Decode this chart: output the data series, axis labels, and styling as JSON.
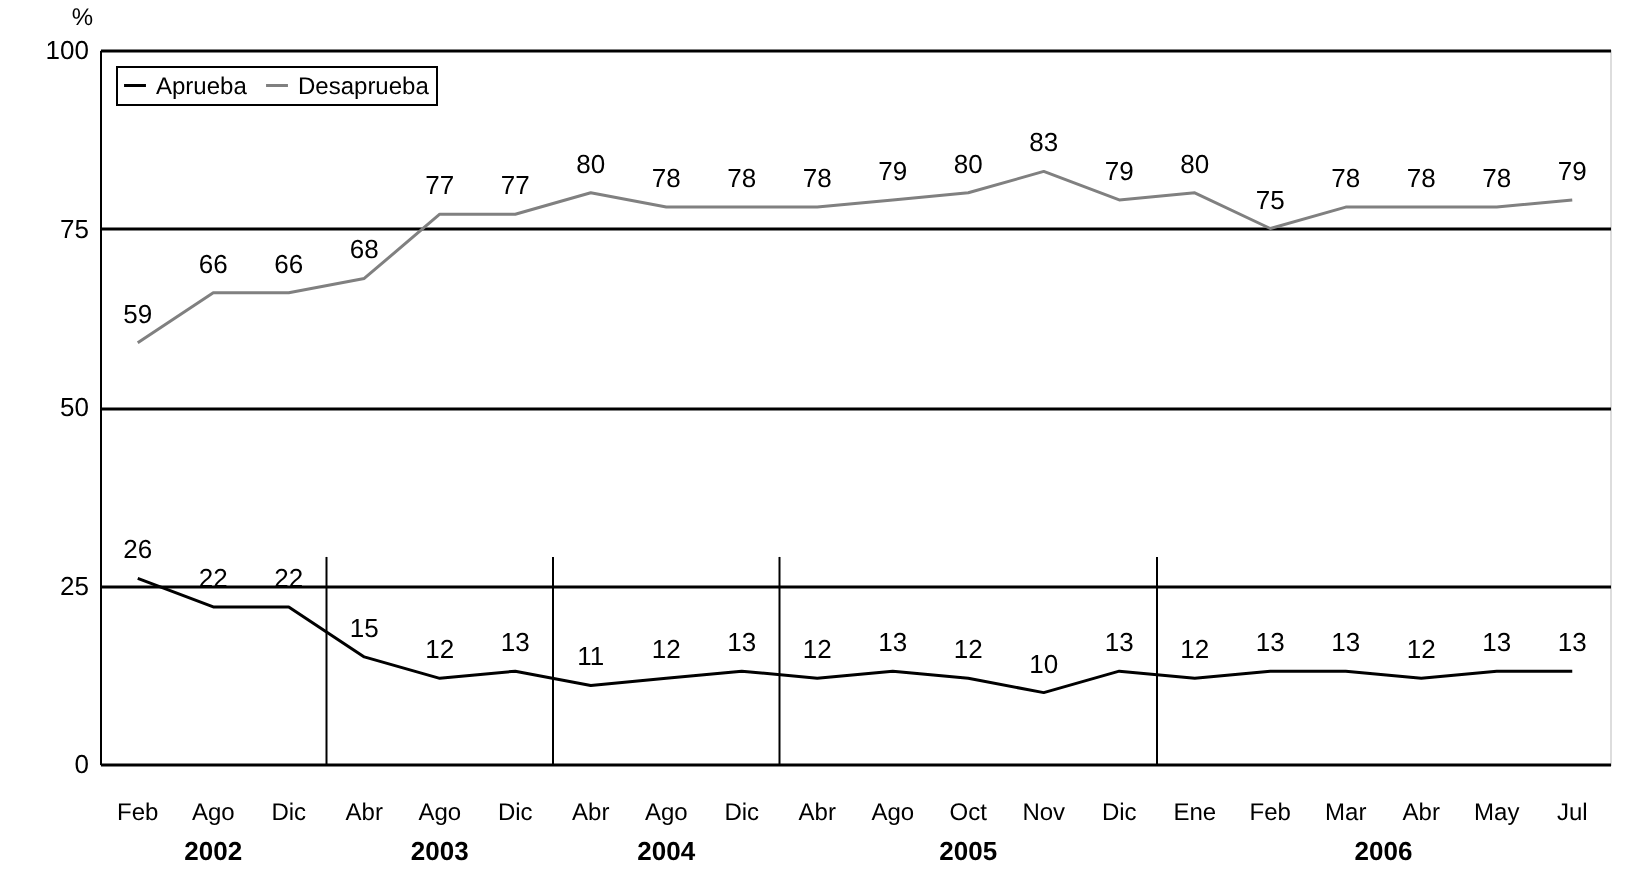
{
  "chart_data": {
    "type": "line",
    "ylabel": "%",
    "categories": [
      "Feb",
      "Ago",
      "Dic",
      "Abr",
      "Ago",
      "Dic",
      "Abr",
      "Ago",
      "Dic",
      "Abr",
      "Ago",
      "Oct",
      "Nov",
      "Dic",
      "Ene",
      "Feb",
      "Mar",
      "Abr",
      "May",
      "Jul"
    ],
    "series": [
      {
        "name": "Aprueba",
        "color": "#000000",
        "values": [
          26,
          22,
          22,
          15,
          12,
          13,
          11,
          12,
          13,
          12,
          13,
          12,
          10,
          13,
          12,
          13,
          13,
          12,
          13,
          13
        ]
      },
      {
        "name": "Desaprueba",
        "color": "#808080",
        "values": [
          59,
          66,
          66,
          68,
          77,
          77,
          80,
          78,
          78,
          78,
          79,
          80,
          83,
          79,
          80,
          75,
          78,
          78,
          78,
          79
        ]
      }
    ],
    "ylim": [
      0,
      100
    ],
    "yticks": [
      0,
      25,
      50,
      75,
      100
    ],
    "grid": "y",
    "legend": "top left",
    "data_labels": true,
    "marker": "none",
    "line_style": "solid",
    "annotations": [
      "2002",
      "2003",
      "2004",
      "2005",
      "2006"
    ]
  }
}
